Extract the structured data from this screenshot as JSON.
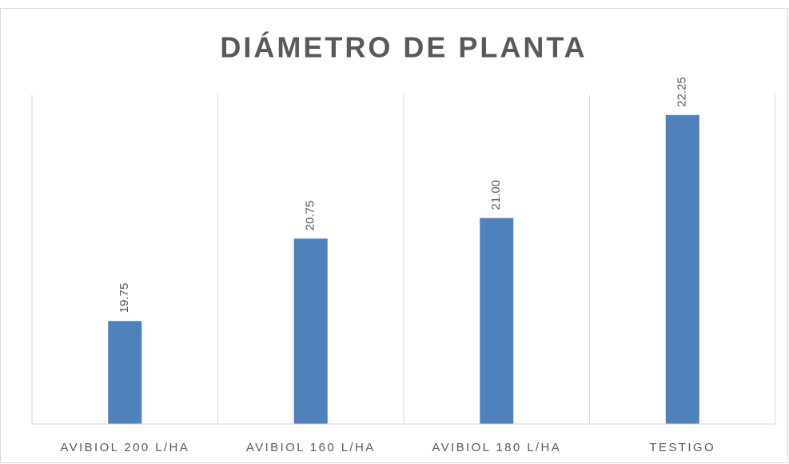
{
  "chart_data": {
    "type": "bar",
    "title": "DIÁMETRO DE PLANTA",
    "categories": [
      "AVIBIOL 200 L/HA",
      "AVIBIOL 160 L/HA",
      "AVIBIOL 180 L/HA",
      "TESTIGO"
    ],
    "values": [
      19.75,
      20.75,
      21,
      22.25
    ],
    "value_labels": [
      "19.75",
      "20.75",
      "21.00",
      "22.25"
    ],
    "color": "#4f81bd",
    "ylim": [
      18.5,
      22.5
    ]
  }
}
